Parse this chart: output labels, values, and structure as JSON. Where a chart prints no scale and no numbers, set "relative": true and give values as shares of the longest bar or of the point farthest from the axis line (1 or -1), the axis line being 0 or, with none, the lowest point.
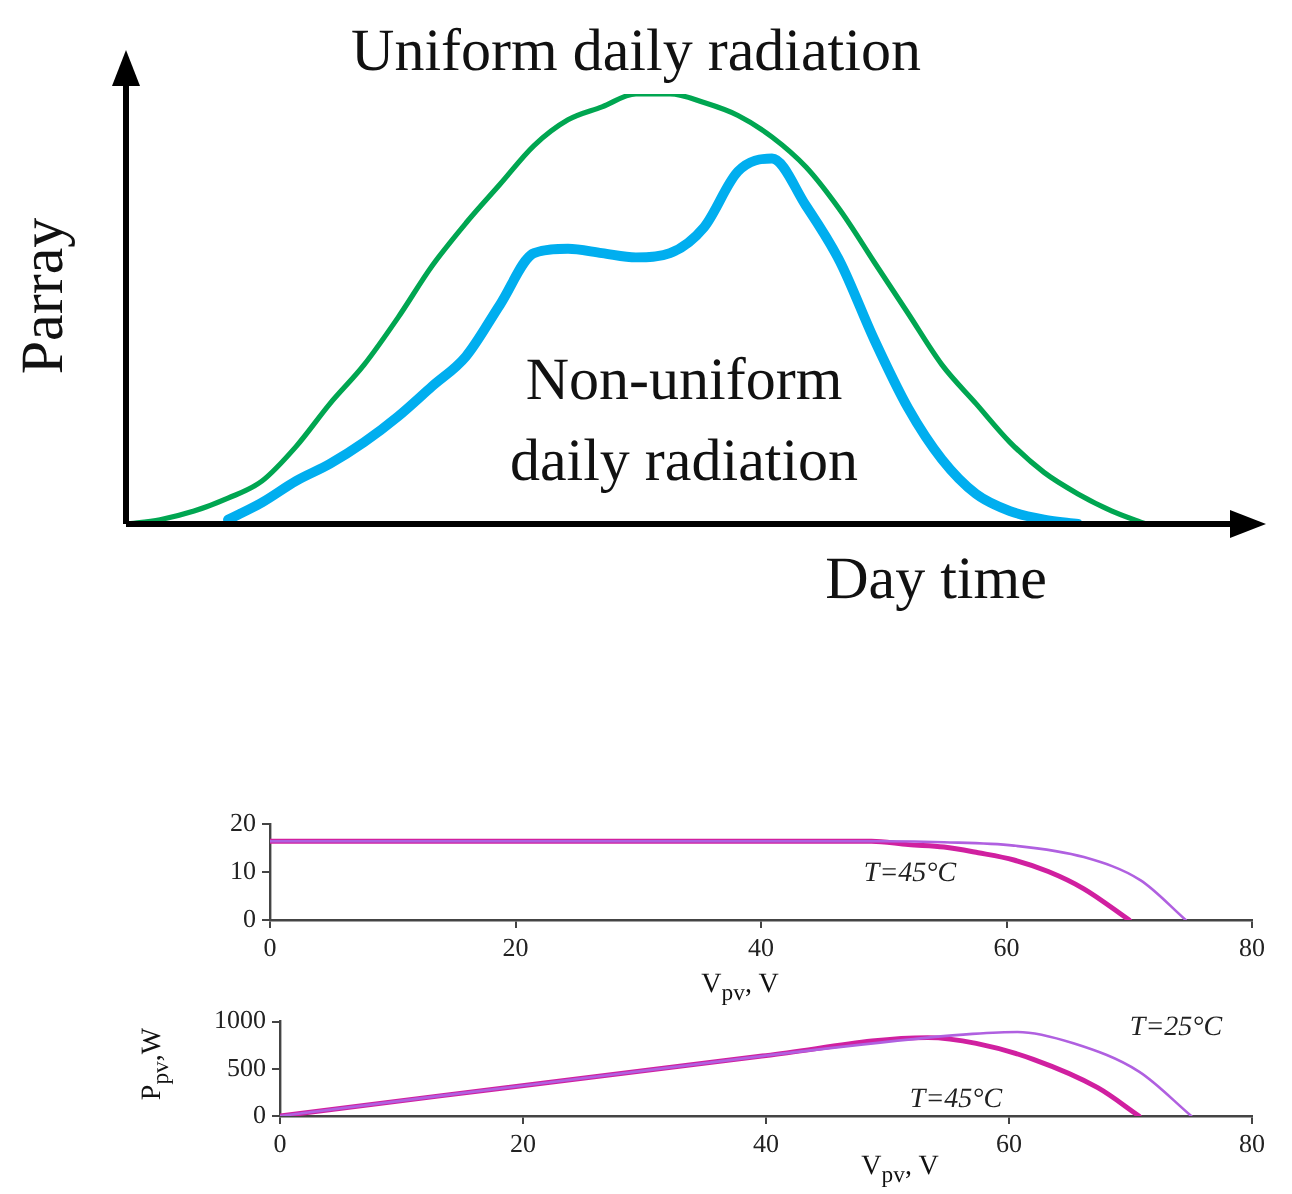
{
  "chart_data": [
    {
      "type": "line",
      "relative": true,
      "xlabel": "Day time",
      "ylabel": "Parray",
      "marker": "none",
      "categories": [
        null,
        null,
        null,
        null,
        null,
        null,
        null,
        null,
        null,
        null,
        null,
        null,
        null,
        null,
        null,
        null,
        null,
        null,
        null,
        null,
        null,
        null,
        null,
        null,
        null,
        null,
        null,
        null,
        null,
        null,
        null
      ],
      "series": [
        {
          "name": "Uniform daily radiation",
          "color": "#00a651",
          "values": [
            0,
            0.01,
            0.03,
            0.06,
            0.1,
            0.18,
            0.28,
            0.37,
            0.48,
            0.6,
            0.7,
            0.79,
            0.88,
            0.94,
            0.97,
            1,
            1,
            0.98,
            0.95,
            0.9,
            0.83,
            0.73,
            0.61,
            0.49,
            0.37,
            0.28,
            0.19,
            0.12,
            0.07,
            0.03,
            0
          ]
        },
        {
          "name": "Non-uniform daily radiation",
          "color": "#00aeef",
          "values": [
            null,
            null,
            null,
            0.01,
            0.05,
            0.1,
            0.14,
            0.19,
            0.25,
            0.32,
            0.39,
            0.51,
            0.63,
            0.64,
            0.63,
            0.62,
            0.63,
            0.69,
            0.82,
            0.85,
            0.74,
            0.61,
            0.43,
            0.27,
            0.15,
            0.07,
            0.03,
            0.01,
            0,
            null,
            null
          ]
        }
      ]
    },
    {
      "type": "line",
      "xlabel": "V$_{pv}$, V",
      "xlim": [
        0,
        80
      ],
      "xticks": [
        0,
        20,
        40,
        60,
        80
      ],
      "ylim": [
        0,
        20
      ],
      "yticks": [
        0,
        10,
        20
      ],
      "marker": "none",
      "annotations": [
        "T=45°C"
      ],
      "series": [
        {
          "color": "#b060e0",
          "x": [
            0,
            50,
            54.9,
            60.6,
            66.3,
            70.9,
            74.6
          ],
          "values": [
            16.4,
            16.4,
            16.2,
            15.5,
            13.1,
            8.3,
            0
          ]
        },
        {
          "color": "#d020a0",
          "x": [
            0,
            49,
            52,
            54.9,
            57.7,
            60.6,
            63.4,
            66.3,
            70
          ],
          "values": [
            16.4,
            16.4,
            15.7,
            15.2,
            14,
            12.5,
            10.1,
            6.5,
            0
          ]
        }
      ]
    },
    {
      "type": "line",
      "xlabel": "V$_{pv}$, V",
      "ylabel": "P$_{pv}$,W",
      "xlim": [
        0,
        80
      ],
      "xticks": [
        0,
        20,
        40,
        60,
        80
      ],
      "ylim": [
        0,
        1000
      ],
      "yticks": [
        0,
        500,
        1000
      ],
      "marker": "none",
      "annotations": [
        "T=25°C",
        "T=45°C"
      ],
      "series": [
        {
          "color": "#b060e0",
          "x": [
            0,
            40,
            53.3,
            57,
            60.7,
            65.3,
            70.7,
            75
          ],
          "values": [
            0,
            640,
            830,
            870,
            890,
            770,
            470,
            0
          ]
        },
        {
          "color": "#d020a0",
          "x": [
            0,
            40,
            53.3,
            57.3,
            62,
            67.3,
            70.7
          ],
          "values": [
            0,
            640,
            830,
            770,
            600,
            300,
            0
          ]
        }
      ]
    }
  ]
}
